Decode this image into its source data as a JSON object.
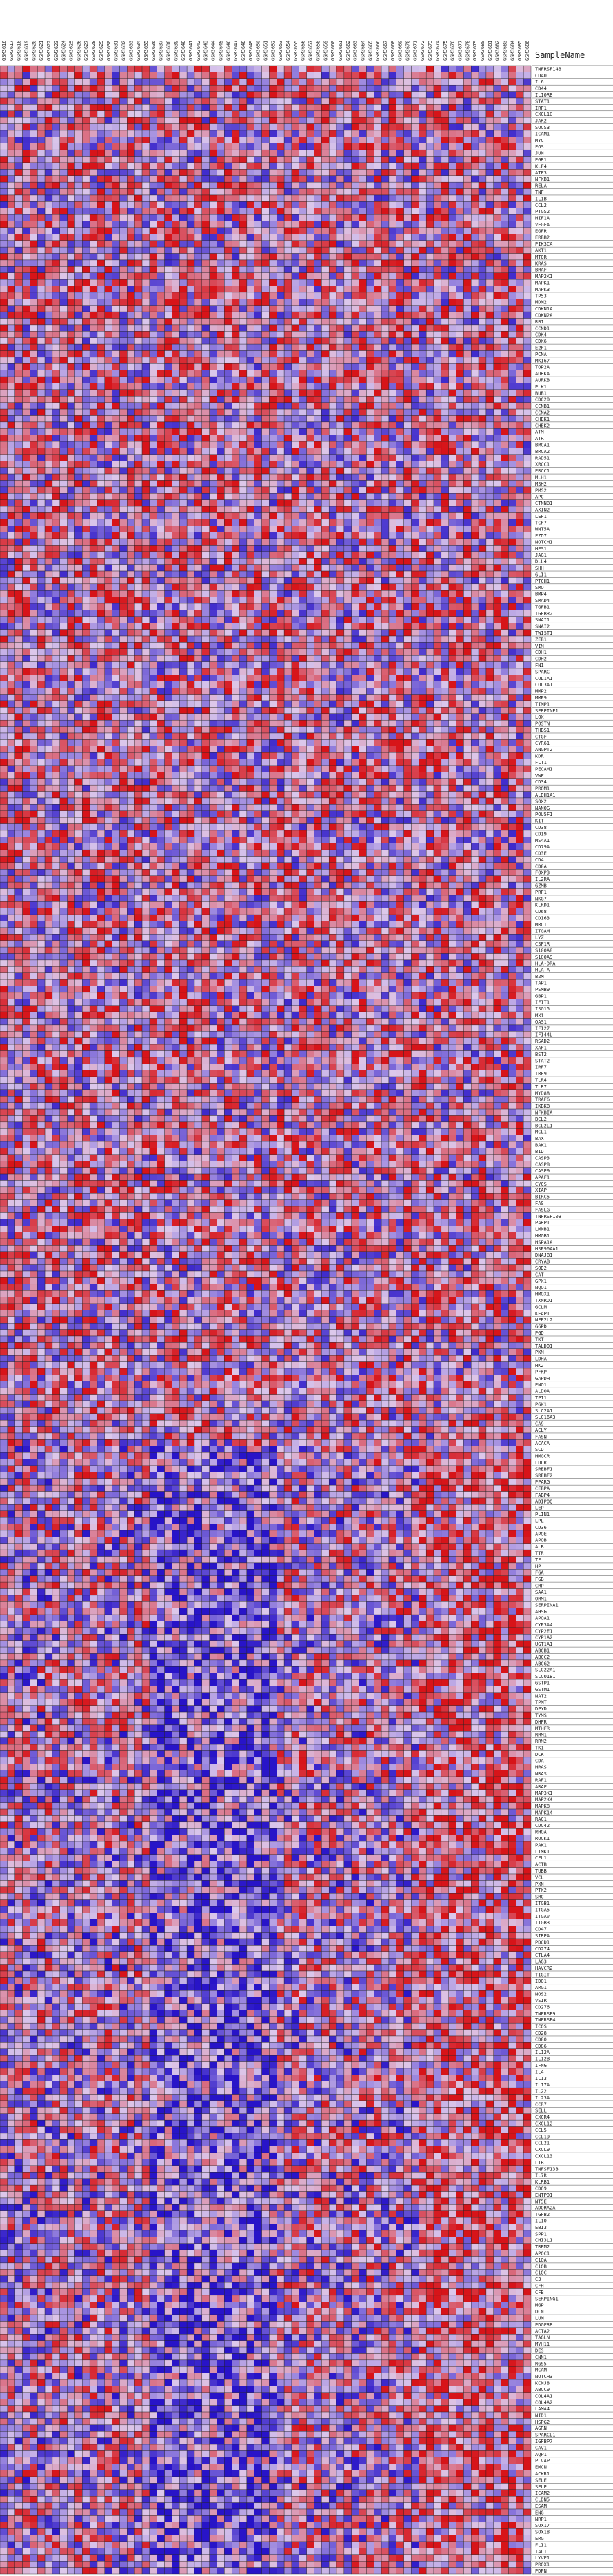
{
  "chart_data": {
    "type": "heatmap",
    "title": "",
    "row_header": "SampleName",
    "columns": [
      "GSM3616",
      "GSM3617",
      "GSM3618",
      "GSM3619",
      "GSM3620",
      "GSM3621",
      "GSM3622",
      "GSM3623",
      "GSM3624",
      "GSM3625",
      "GSM3626",
      "GSM3627",
      "GSM3628",
      "GSM3629",
      "GSM3630",
      "GSM3631",
      "GSM3632",
      "GSM3633",
      "GSM3634",
      "GSM3635",
      "GSM3636",
      "GSM3637",
      "GSM3638",
      "GSM3639",
      "GSM3640",
      "GSM3641",
      "GSM3642",
      "GSM3643",
      "GSM3644",
      "GSM3645",
      "GSM3646",
      "GSM3647",
      "GSM3648",
      "GSM3649",
      "GSM3650",
      "GSM3651",
      "GSM3652",
      "GSM3653",
      "GSM3654",
      "GSM3655",
      "GSM3656",
      "GSM3657",
      "GSM3658",
      "GSM3659",
      "GSM3660",
      "GSM3661",
      "GSM3662",
      "GSM3663",
      "GSM3664",
      "GSM3665",
      "GSM3666",
      "GSM3667",
      "GSM3668",
      "GSM3669",
      "GSM3670",
      "GSM3671",
      "GSM3672",
      "GSM3673",
      "GSM3674",
      "GSM3675",
      "GSM3676",
      "GSM3677",
      "GSM3678",
      "GSM3679",
      "GSM3680",
      "GSM3681",
      "GSM3682",
      "GSM3683",
      "GSM3684",
      "GSM3685",
      "GSM3686"
    ],
    "rows": [
      "TNFRSF14B",
      "CD40",
      "IL6",
      "CD44",
      "IL10RB",
      "STAT1",
      "IRF1",
      "CXCL10",
      "JAK2",
      "SOCS3",
      "ICAM1",
      "MYC",
      "FOS",
      "JUN",
      "EGR1",
      "KLF4",
      "ATF3",
      "NFKB1",
      "RELA",
      "TNF",
      "IL1B",
      "CCL2",
      "PTGS2",
      "HIF1A",
      "VEGFA",
      "EGFR",
      "ERBB2",
      "PIK3CA",
      "AKT1",
      "MTOR",
      "KRAS",
      "BRAF",
      "MAP2K1",
      "MAPK1",
      "MAPK3",
      "TP53",
      "MDM2",
      "CDKN1A",
      "CDKN2A",
      "RB1",
      "CCND1",
      "CDK4",
      "CDK6",
      "E2F1",
      "PCNA",
      "MKI67",
      "TOP2A",
      "AURKA",
      "AURKB",
      "PLK1",
      "BUB1",
      "CDC20",
      "CCNB1",
      "CCNA2",
      "CHEK1",
      "CHEK2",
      "ATM",
      "ATR",
      "BRCA1",
      "BRCA2",
      "RAD51",
      "XRCC1",
      "ERCC1",
      "MLH1",
      "MSH2",
      "PMS2",
      "APC",
      "CTNNB1",
      "AXIN2",
      "LEF1",
      "TCF7",
      "WNT5A",
      "FZD7",
      "NOTCH1",
      "HES1",
      "JAG1",
      "DLL4",
      "SHH",
      "GLI1",
      "PTCH1",
      "SMO",
      "BMP4",
      "SMAD4",
      "TGFB1",
      "TGFBR2",
      "SNAI1",
      "SNAI2",
      "TWIST1",
      "ZEB1",
      "VIM",
      "CDH1",
      "CDH2",
      "FN1",
      "SPARC",
      "COL1A1",
      "COL3A1",
      "MMP2",
      "MMP9",
      "TIMP1",
      "SERPINE1",
      "LOX",
      "POSTN",
      "THBS1",
      "CTGF",
      "CYR61",
      "ANGPT2",
      "KDR",
      "FLT1",
      "PECAM1",
      "VWF",
      "CD34",
      "PROM1",
      "ALDH1A1",
      "SOX2",
      "NANOG",
      "POU5F1",
      "KIT",
      "CD38",
      "CD19",
      "MS4A1",
      "CD79A",
      "CD3E",
      "CD4",
      "CD8A",
      "FOXP3",
      "IL2RA",
      "GZMB",
      "PRF1",
      "NKG7",
      "KLRD1",
      "CD68",
      "CD163",
      "MRC1",
      "ITGAM",
      "LYZ",
      "CSF1R",
      "S100A8",
      "S100A9",
      "HLA-DRA",
      "HLA-A",
      "B2M",
      "TAP1",
      "PSMB9",
      "GBP1",
      "IFIT1",
      "ISG15",
      "MX1",
      "OAS1",
      "IFI27",
      "IFI44L",
      "RSAD2",
      "XAF1",
      "BST2",
      "STAT2",
      "IRF7",
      "IRF9",
      "TLR4",
      "TLR7",
      "MYD88",
      "TRAF6",
      "IKBKB",
      "NFKBIA",
      "BCL2",
      "BCL2L1",
      "MCL1",
      "BAX",
      "BAK1",
      "BID",
      "CASP3",
      "CASP8",
      "CASP9",
      "APAF1",
      "CYCS",
      "XIAP",
      "BIRC5",
      "FAS",
      "FASLG",
      "TNFRSF10B",
      "PARP1",
      "LMNB1",
      "HMGB1",
      "HSPA1A",
      "HSP90AA1",
      "DNAJB1",
      "CRYAB",
      "SOD2",
      "CAT",
      "GPX1",
      "NQO1",
      "HMOX1",
      "TXNRD1",
      "GCLM",
      "KEAP1",
      "NFE2L2",
      "G6PD",
      "PGD",
      "TKT",
      "TALDO1",
      "PKM",
      "LDHA",
      "HK2",
      "PFKP",
      "GAPDH",
      "ENO1",
      "ALDOA",
      "TPI1",
      "PGK1",
      "SLC2A1",
      "SLC16A3",
      "CA9",
      "ACLY",
      "FASN",
      "ACACA",
      "SCD",
      "HMGCR",
      "LDLR",
      "SREBF1",
      "SREBF2",
      "PPARG",
      "CEBPA",
      "FABP4",
      "ADIPOQ",
      "LEP",
      "PLIN1",
      "LPL",
      "CD36",
      "APOE",
      "APOB",
      "ALB",
      "TTR",
      "TF",
      "HP",
      "FGA",
      "FGB",
      "CRP",
      "SAA1",
      "ORM1",
      "SERPINA1",
      "AHSG",
      "APOA1",
      "CYP3A4",
      "CYP2E1",
      "CYP1A2",
      "UGT1A1",
      "ABCB1",
      "ABCC2",
      "ABCG2",
      "SLC22A1",
      "SLCO1B1",
      "GSTP1",
      "GSTM1",
      "NAT2",
      "TPMT",
      "DPYD",
      "TYMS",
      "DHFR",
      "MTHFR",
      "RRM1",
      "RRM2",
      "TK1",
      "DCK",
      "CDA",
      "HRAS",
      "NRAS",
      "RAF1",
      "ARAF",
      "MAP3K1",
      "MAP2K4",
      "MAPK8",
      "MAPK14",
      "RAC1",
      "CDC42",
      "RHOA",
      "ROCK1",
      "PAK1",
      "LIMK1",
      "CFL1",
      "ACTB",
      "TUBB",
      "VCL",
      "PXN",
      "PTK2",
      "SRC",
      "ITGB1",
      "ITGA5",
      "ITGAV",
      "ITGB3",
      "CD47",
      "SIRPA",
      "PDCD1",
      "CD274",
      "CTLA4",
      "LAG3",
      "HAVCR2",
      "TIGIT",
      "IDO1",
      "ARG1",
      "NOS2",
      "VSIR",
      "CD276",
      "TNFRSF9",
      "TNFRSF4",
      "ICOS",
      "CD28",
      "CD80",
      "CD86",
      "IL12A",
      "IL12B",
      "IFNG",
      "IL4",
      "IL13",
      "IL17A",
      "IL22",
      "IL23A",
      "CCR7",
      "SELL",
      "CXCR4",
      "CXCL12",
      "CCL5",
      "CCL19",
      "CCL21",
      "CXCL9",
      "CXCL13",
      "LTB",
      "TNFSF13B",
      "IL7R",
      "KLRB1",
      "CD69",
      "ENTPD1",
      "NT5E",
      "ADORA2A",
      "TGFB2",
      "IL10",
      "EBI3",
      "SPP1",
      "CHI3L1",
      "TREM2",
      "APOC1",
      "C1QA",
      "C1QB",
      "C1QC",
      "C3",
      "CFH",
      "CFB",
      "SERPING1",
      "MGP",
      "DCN",
      "LUM",
      "PDGFRB",
      "ACTA2",
      "TAGLN",
      "MYH11",
      "DES",
      "CNN1",
      "RGS5",
      "MCAM",
      "NOTCH3",
      "KCNJ8",
      "ABCC9",
      "COL4A1",
      "COL4A2",
      "LAMA4",
      "NID1",
      "HSPG2",
      "AGRN",
      "SPARCL1",
      "IGFBP7",
      "CAV1",
      "AQP1",
      "PLVAP",
      "EMCN",
      "ACKR1",
      "SELE",
      "SELP",
      "ICAM2",
      "CLDN5",
      "ESAM",
      "ENG",
      "NRP1",
      "SOX17",
      "SOX18",
      "ERG",
      "FLI1",
      "TAL1",
      "LYVE1",
      "PROX1",
      "PDPN"
    ]
  }
}
